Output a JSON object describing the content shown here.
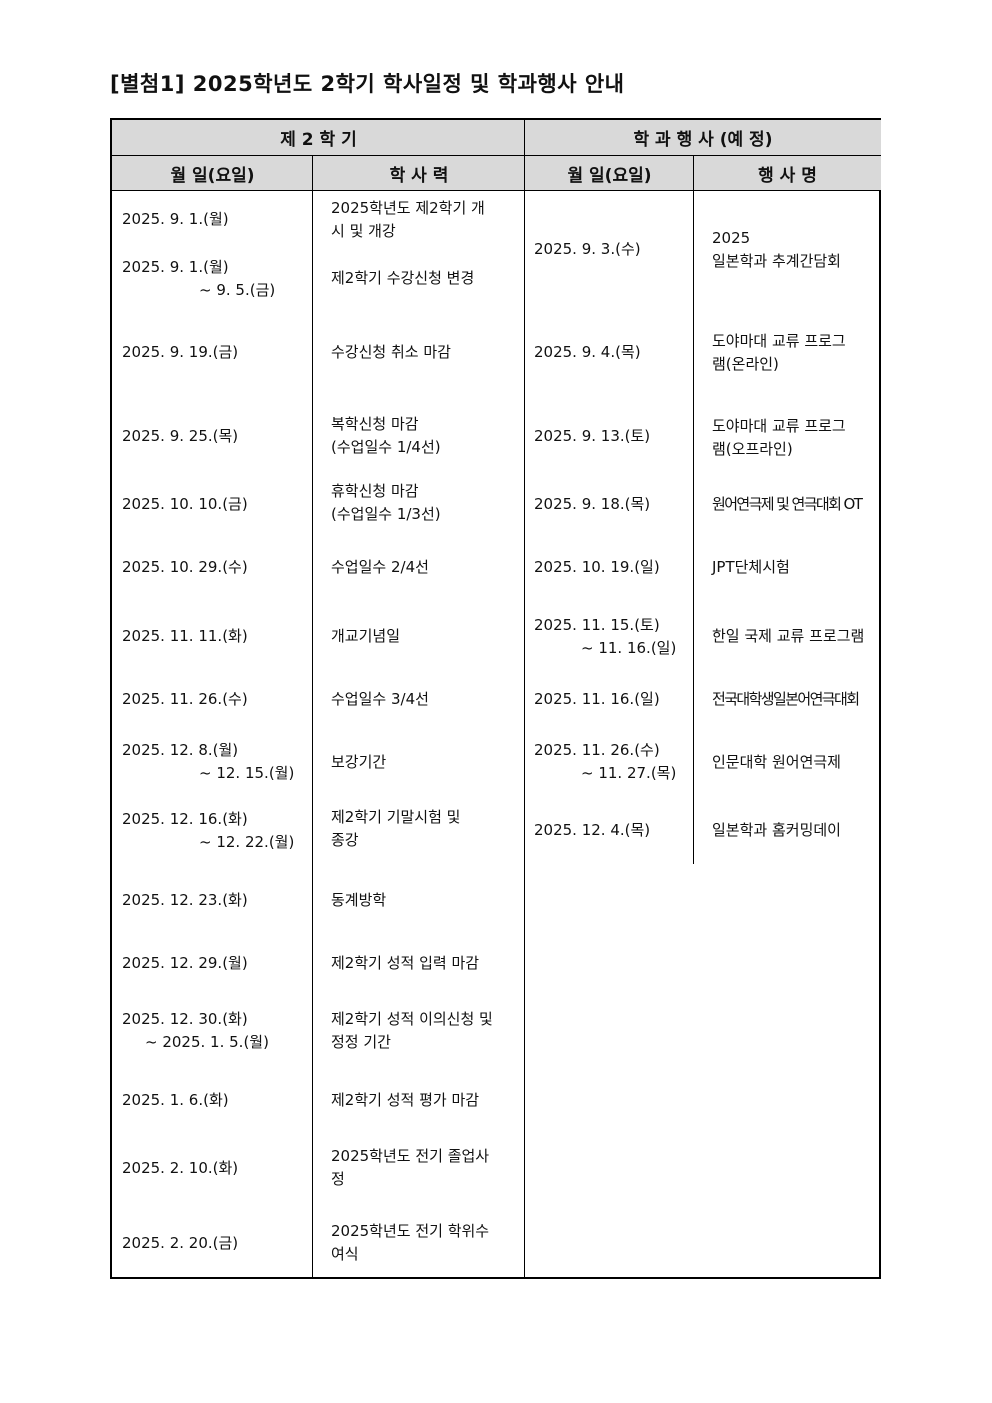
{
  "title": "[별첨1] 2025학년도 2학기 학사일정 및 학과행사 안내",
  "headers": {
    "semester": "제 2 학 기",
    "dept_events": "학 과 행 사 (예 정)",
    "date": "월 일(요일)",
    "calendar": "학 사 력",
    "date2": "월 일(요일)",
    "event_name": "행 사 명"
  },
  "semester_schedule": [
    {
      "date": [
        "2025. 9. 1.(월)"
      ],
      "event": [
        "2025학년도 제2학기 개",
        "시 및 개강"
      ]
    },
    {
      "date": [
        "2025. 9. 1.(월)",
        "~ 9. 5.(금)"
      ],
      "event": [
        "제2학기 수강신청 변경"
      ]
    },
    {
      "date": [
        "2025. 9. 19.(금)"
      ],
      "event": [
        "수강신청 취소 마감"
      ]
    },
    {
      "date": [
        "2025. 9. 25.(목)"
      ],
      "event": [
        "복학신청 마감",
        "(수업일수 1/4선)"
      ]
    },
    {
      "date": [
        "2025. 10. 10.(금)"
      ],
      "event": [
        "휴학신청 마감",
        "(수업일수 1/3선)"
      ]
    },
    {
      "date": [
        "2025. 10. 29.(수)"
      ],
      "event": [
        "수업일수 2/4선"
      ]
    },
    {
      "date": [
        "2025. 11. 11.(화)"
      ],
      "event": [
        "개교기념일"
      ]
    },
    {
      "date": [
        "2025. 11. 26.(수)"
      ],
      "event": [
        "수업일수 3/4선"
      ]
    },
    {
      "date": [
        "2025. 12. 8.(월)",
        "~ 12. 15.(월)"
      ],
      "event": [
        "보강기간"
      ]
    },
    {
      "date": [
        "2025. 12. 16.(화)",
        "~ 12. 22.(월)"
      ],
      "event": [
        "제2학기 기말시험 및",
        "종강"
      ]
    },
    {
      "date": [
        "2025. 12. 23.(화)"
      ],
      "event": [
        "동계방학"
      ]
    },
    {
      "date": [
        "2025. 12. 29.(월)"
      ],
      "event": [
        "제2학기 성적 입력 마감"
      ]
    },
    {
      "date": [
        "2025. 12. 30.(화)",
        "~ 2025. 1. 5.(월)"
      ],
      "event": [
        "제2학기 성적 이의신청 및",
        "정정 기간"
      ]
    },
    {
      "date": [
        "2025. 1. 6.(화)"
      ],
      "event": [
        "제2학기 성적 평가 마감"
      ]
    },
    {
      "date": [
        "2025. 2. 10.(화)"
      ],
      "event": [
        "2025학년도 전기 졸업사",
        "정"
      ]
    },
    {
      "date": [
        "2025. 2. 20.(금)"
      ],
      "event": [
        "2025학년도 전기 학위수",
        "여식"
      ]
    }
  ],
  "department_events": [
    {
      "date": [
        "2025. 9. 3.(수)"
      ],
      "event": [
        "2025",
        "일본학과 추계간담회"
      ]
    },
    {
      "date": [
        "2025. 9. 4.(목)"
      ],
      "event": [
        "도야마대 교류 프로그",
        "램(온라인)"
      ]
    },
    {
      "date": [
        "2025. 9. 13.(토)"
      ],
      "event": [
        "도야마대 교류 프로그",
        "램(오프라인)"
      ]
    },
    {
      "date": [
        "2025. 9. 18.(목)"
      ],
      "event": [
        "원어연극제 및 연극대회 OT"
      ]
    },
    {
      "date": [
        "2025. 10. 19.(일)"
      ],
      "event": [
        "JPT단체시험"
      ]
    },
    {
      "date": [
        "2025. 11. 15.(토)",
        "~ 11. 16.(일)"
      ],
      "event": [
        "한일 국제 교류 프로그램"
      ]
    },
    {
      "date": [
        "2025. 11. 16.(일)"
      ],
      "event": [
        "전국대학생일본어연극대회"
      ]
    },
    {
      "date": [
        "2025. 11. 26.(수)",
        "~ 11. 27.(목)"
      ],
      "event": [
        "인문대학 원어연극제"
      ]
    },
    {
      "date": [
        "2025. 12. 4.(목)"
      ],
      "event": [
        "일본학과 홈커밍데이"
      ]
    }
  ]
}
